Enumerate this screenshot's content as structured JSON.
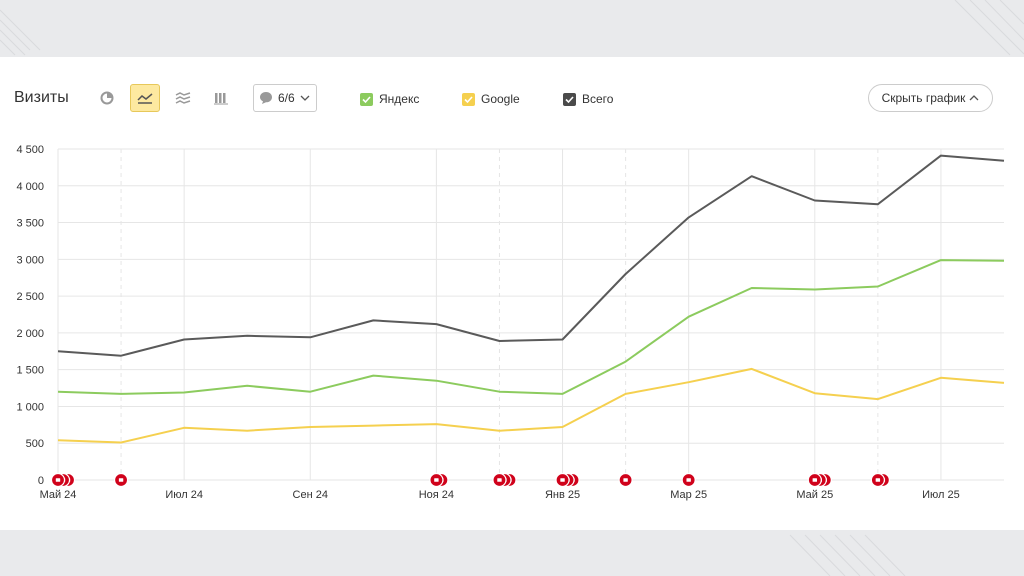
{
  "header": {
    "title": "Визиты",
    "notes_label": "6/6",
    "hide_label": "Скрыть график"
  },
  "legend": [
    {
      "name": "Яндекс",
      "color": "#8ccb5e"
    },
    {
      "name": "Google",
      "color": "#f5d04f"
    },
    {
      "name": "Всего",
      "color": "#5a5a5a"
    }
  ],
  "icons": [
    "pie-chart-icon",
    "line-chart-icon",
    "area-chart-icon",
    "bar-chart-icon",
    "comment-icon",
    "chevron-down-icon",
    "chevron-up-icon",
    "checkmark-icon",
    "note-marker-icon"
  ],
  "chart_data": {
    "type": "line",
    "x": [
      "2024-05",
      "2024-06",
      "2024-07",
      "2024-08",
      "2024-09",
      "2024-10",
      "2024-11",
      "2024-12",
      "2025-01",
      "2025-02",
      "2025-03",
      "2025-04",
      "2025-05",
      "2025-06",
      "2025-07",
      "2025-08"
    ],
    "tick_labels": [
      "Май 24",
      "Июл 24",
      "Сен 24",
      "Ноя 24",
      "Янв 25",
      "Мар 25",
      "Май 25",
      "Июл 25"
    ],
    "y_ticks": [
      "0",
      "500",
      "1 000",
      "1 500",
      "2 000",
      "2 500",
      "3 000",
      "3 500",
      "4 000",
      "4 500"
    ],
    "ylim": [
      0,
      4500
    ],
    "grid": true,
    "legend_position": "top",
    "series": [
      {
        "name": "Яндекс",
        "color": "#8ccb5e",
        "values": [
          1200,
          1170,
          1190,
          1280,
          1200,
          1420,
          1350,
          1200,
          1170,
          1610,
          2220,
          2610,
          2590,
          2630,
          2990,
          2980
        ]
      },
      {
        "name": "Google",
        "color": "#f5d04f",
        "values": [
          540,
          510,
          710,
          670,
          720,
          740,
          760,
          670,
          720,
          1170,
          1330,
          1510,
          1180,
          1100,
          1390,
          1320
        ]
      },
      {
        "name": "Всего",
        "color": "#5a5a5a",
        "values": [
          1750,
          1690,
          1910,
          1960,
          1940,
          2170,
          2120,
          1890,
          1910,
          2800,
          3570,
          4130,
          3800,
          3750,
          4410,
          4340
        ]
      }
    ],
    "annotation_markers": [
      {
        "x": "2024-05",
        "count": 3
      },
      {
        "x": "2024-06",
        "count": 1
      },
      {
        "x": "2024-11",
        "count": 2
      },
      {
        "x": "2024-12",
        "count": 3
      },
      {
        "x": "2025-01",
        "count": 3
      },
      {
        "x": "2025-02",
        "count": 1
      },
      {
        "x": "2025-03",
        "count": 1
      },
      {
        "x": "2025-05",
        "count": 3
      },
      {
        "x": "2025-06",
        "count": 2
      }
    ],
    "dashed_gridlines_at": [
      "2024-06",
      "2024-12",
      "2025-02",
      "2025-06"
    ]
  }
}
